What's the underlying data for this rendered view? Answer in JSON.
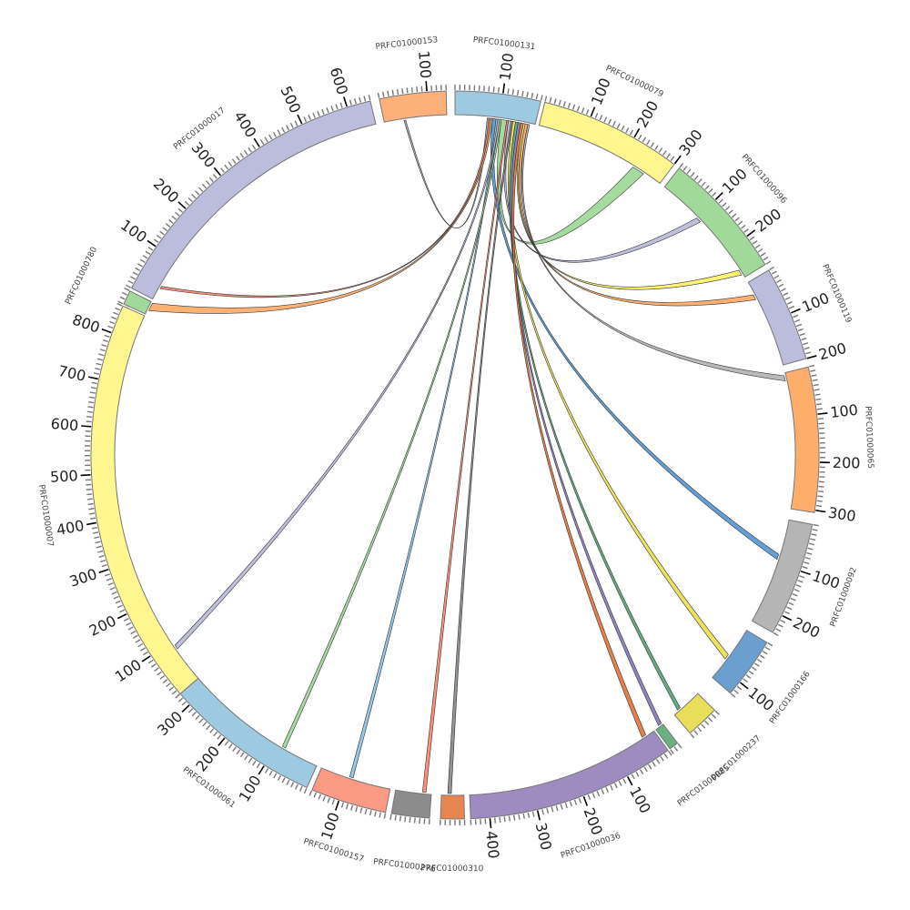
{
  "chart_data": {
    "type": "chord",
    "title": "",
    "tick_units": {
      "minor": 10,
      "major": 100
    },
    "segments": [
      {
        "id": "PRFC01000131",
        "length": 180,
        "color": "#9ecae1"
      },
      {
        "id": "PRFC01000079",
        "length": 300,
        "color": "#fff68f"
      },
      {
        "id": "PRFC01000096",
        "length": 270,
        "color": "#a1d99b"
      },
      {
        "id": "PRFC01000119",
        "length": 200,
        "color": "#bcbddc"
      },
      {
        "id": "PRFC01000065",
        "length": 305,
        "color": "#fdae6b"
      },
      {
        "id": "PRFC01000092",
        "length": 240,
        "color": "#b5b5b5"
      },
      {
        "id": "PRFC01000166",
        "length": 130,
        "color": "#6a9fd0"
      },
      {
        "id": "PRFC01000237",
        "length": 70,
        "color": "#e8de5a"
      },
      {
        "id": "PRFC01000085",
        "length": 20,
        "color": "#6aaf80"
      },
      {
        "id": "PRFC01000036",
        "length": 440,
        "color": "#9e8cc0"
      },
      {
        "id": "PRFC01000310",
        "length": 50,
        "color": "#e6854f"
      },
      {
        "id": "PRFC01000276",
        "length": 80,
        "color": "#8c8c8c"
      },
      {
        "id": "PRFC01000157",
        "length": 160,
        "color": "#fb9a85"
      },
      {
        "id": "PRFC01000061",
        "length": 330,
        "color": "#9ecae1"
      },
      {
        "id": "PRFC01000007",
        "length": 860,
        "color": "#fff68f"
      },
      {
        "id": "PRFC01000780",
        "length": 30,
        "color": "#a1d99b"
      },
      {
        "id": "PRFC01000017",
        "length": 650,
        "color": "#bcbddc"
      },
      {
        "id": "PRFC01000153",
        "length": 140,
        "color": "#fdb07a"
      }
    ],
    "links": [
      {
        "source": "PRFC01000131",
        "s": [
          72,
          76
        ],
        "target": "PRFC01000153",
        "t": [
          44,
          48
        ],
        "color": "#aaaaaa"
      },
      {
        "source": "PRFC01000131",
        "s": [
          76,
          80
        ],
        "target": "PRFC01000017",
        "t": [
          28,
          34
        ],
        "color": "#f28a72"
      },
      {
        "source": "PRFC01000131",
        "s": [
          80,
          84
        ],
        "target": "PRFC01000780",
        "t": [
          10,
          28
        ],
        "color": "#fdae6b"
      },
      {
        "source": "PRFC01000131",
        "s": [
          84,
          92
        ],
        "target": "PRFC01000092",
        "t": [
          80,
          92
        ],
        "color": "#5b9bd5"
      },
      {
        "source": "PRFC01000131",
        "s": [
          92,
          96
        ],
        "target": "PRFC01000157",
        "t": [
          86,
          94
        ],
        "color": "#8dc3e6"
      },
      {
        "source": "PRFC01000131",
        "s": [
          96,
          100
        ],
        "target": "PRFC01000007",
        "t": [
          80,
          90
        ],
        "color": "#bcbddc"
      },
      {
        "source": "PRFC01000131",
        "s": [
          100,
          104
        ],
        "target": "PRFC01000061",
        "t": [
          80,
          88
        ],
        "color": "#a1d99b"
      },
      {
        "source": "PRFC01000131",
        "s": [
          104,
          116
        ],
        "target": "PRFC01000079",
        "t": [
          230,
          258
        ],
        "color": "#a1d99b"
      },
      {
        "source": "PRFC01000131",
        "s": [
          116,
          120
        ],
        "target": "PRFC01000276",
        "t": [
          12,
          20
        ],
        "color": "#fb8a72"
      },
      {
        "source": "PRFC01000131",
        "s": [
          120,
          126
        ],
        "target": "PRFC01000096",
        "t": [
          100,
          112
        ],
        "color": "#bcbddc"
      },
      {
        "source": "PRFC01000131",
        "s": [
          126,
          130
        ],
        "target": "PRFC01000310",
        "t": [
          28,
          36
        ],
        "color": "#8c8c8c"
      },
      {
        "source": "PRFC01000131",
        "s": [
          130,
          136
        ],
        "target": "PRFC01000166",
        "t": [
          68,
          80
        ],
        "color": "#ece054"
      },
      {
        "source": "PRFC01000131",
        "s": [
          136,
          142
        ],
        "target": "PRFC01000237",
        "t": [
          50,
          58
        ],
        "color": "#5ca87a"
      },
      {
        "source": "PRFC01000131",
        "s": [
          142,
          148
        ],
        "target": "PRFC01000085",
        "t": [
          2,
          10
        ],
        "color": "#8c7cbd"
      },
      {
        "source": "PRFC01000131",
        "s": [
          148,
          154
        ],
        "target": "PRFC01000036",
        "t": [
          20,
          30
        ],
        "color": "#e6783f"
      },
      {
        "source": "PRFC01000131",
        "s": [
          154,
          158
        ],
        "target": "PRFC01000096",
        "t": [
          250,
          262
        ],
        "color": "#fff26a"
      },
      {
        "source": "PRFC01000131",
        "s": [
          158,
          164
        ],
        "target": "PRFC01000119",
        "t": [
          30,
          42
        ],
        "color": "#fdae6b"
      },
      {
        "source": "PRFC01000131",
        "s": [
          164,
          168
        ],
        "target": "PRFC01000065",
        "t": [
          6,
          18
        ],
        "color": "#b5b5b5"
      }
    ]
  }
}
